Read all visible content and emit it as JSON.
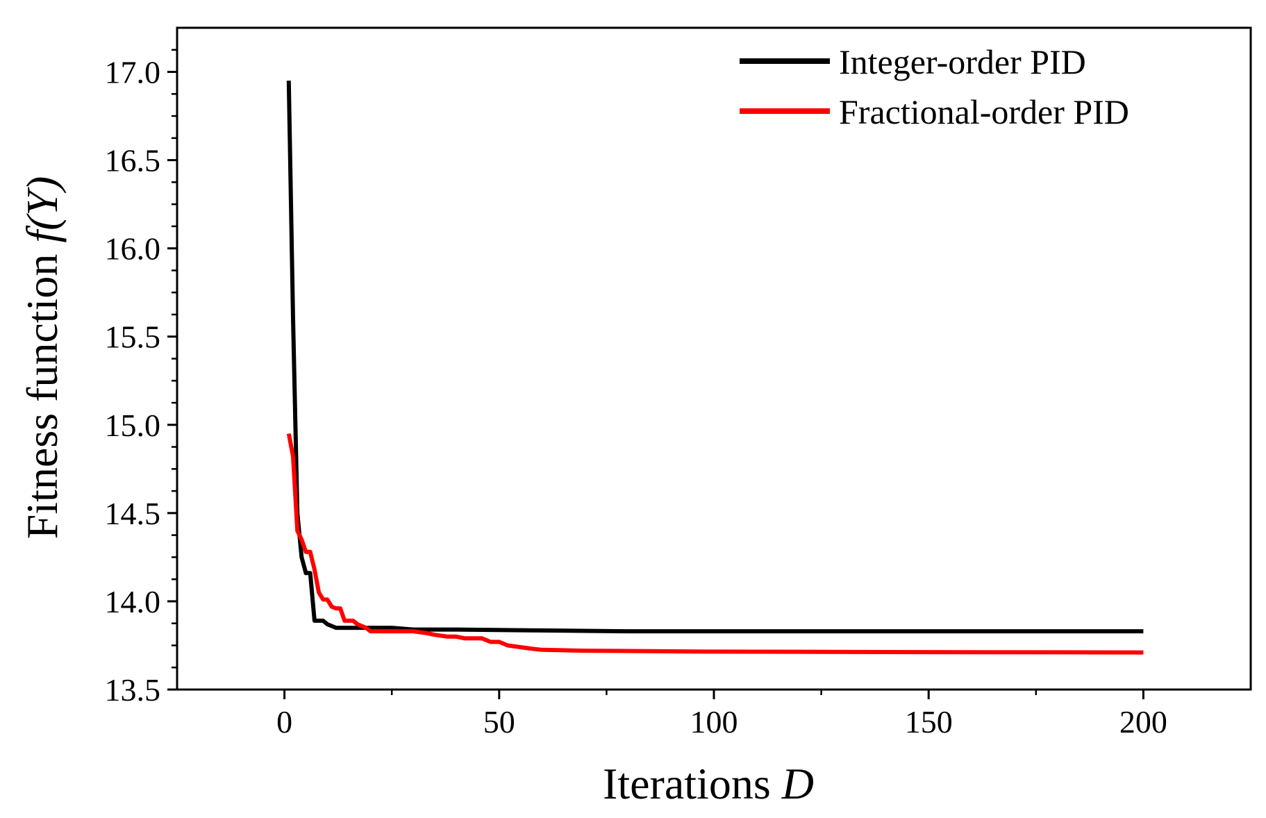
{
  "chart_data": {
    "type": "line",
    "title": "",
    "xlabel": {
      "text": "Iterations ",
      "symbol": "D"
    },
    "ylabel": {
      "text": "Fitness function ",
      "symbol": "f(Y)"
    },
    "xlim": [
      -25,
      225
    ],
    "ylim": [
      13.5,
      17.25
    ],
    "xticks": [
      0,
      50,
      100,
      150,
      200
    ],
    "xtick_labels": [
      "0",
      "50",
      "100",
      "150",
      "200"
    ],
    "yticks": [
      13.5,
      14.0,
      14.5,
      15.0,
      15.5,
      16.0,
      16.5,
      17.0
    ],
    "ytick_labels": [
      "13.5",
      "14.0",
      "14.5",
      "15.0",
      "15.5",
      "16.0",
      "16.5",
      "17.0"
    ],
    "grid": false,
    "legend_position": "top-right",
    "series": [
      {
        "name": "Integer-order PID",
        "color": "#000000",
        "x": [
          1,
          2,
          3,
          4,
          5,
          6,
          7,
          8,
          9,
          10,
          11,
          12,
          13,
          15,
          20,
          25,
          30,
          40,
          60,
          80,
          100,
          150,
          200
        ],
        "y": [
          16.95,
          15.6,
          14.5,
          14.25,
          14.16,
          14.16,
          13.89,
          13.89,
          13.89,
          13.87,
          13.86,
          13.85,
          13.85,
          13.85,
          13.85,
          13.85,
          13.84,
          13.84,
          13.835,
          13.83,
          13.83,
          13.83,
          13.83
        ]
      },
      {
        "name": "Fractional-order PID",
        "color": "#ff0000",
        "x": [
          1,
          2,
          3,
          4,
          5,
          6,
          7,
          8,
          9,
          10,
          11,
          12,
          13,
          14,
          15,
          16,
          17,
          18,
          19,
          20,
          25,
          30,
          33,
          35,
          38,
          40,
          42,
          44,
          46,
          48,
          50,
          52,
          55,
          58,
          60,
          70,
          100,
          150,
          200
        ],
        "y": [
          14.95,
          14.82,
          14.4,
          14.35,
          14.28,
          14.28,
          14.18,
          14.05,
          14.01,
          14.01,
          13.97,
          13.96,
          13.96,
          13.89,
          13.89,
          13.89,
          13.87,
          13.86,
          13.85,
          13.83,
          13.83,
          13.83,
          13.82,
          13.81,
          13.8,
          13.8,
          13.79,
          13.79,
          13.79,
          13.77,
          13.77,
          13.75,
          13.74,
          13.73,
          13.725,
          13.72,
          13.715,
          13.712,
          13.71
        ]
      }
    ]
  }
}
